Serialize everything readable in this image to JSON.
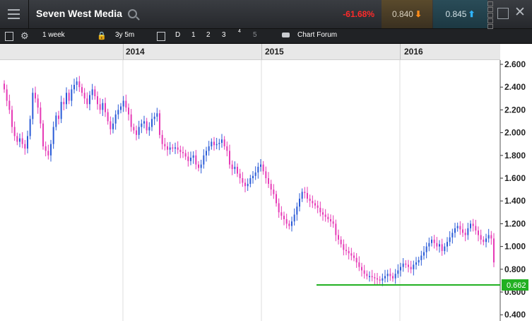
{
  "header": {
    "title": "Seven West Media",
    "change_pct": "-61.68%",
    "bid": "0.840",
    "ask": "0.845",
    "bid_arrow": "⬇",
    "ask_arrow": "⬆"
  },
  "toolbar": {
    "interval": "1 week",
    "range": "3y 5m",
    "views": [
      "D",
      "1",
      "2",
      "3",
      "4",
      "5"
    ],
    "chart_forum": "Chart Forum"
  },
  "colors": {
    "up_candle": "#2a5bd7",
    "down_candle": "#e63ab6",
    "support_line": "#22b022",
    "price_marker": "#22b022"
  },
  "icons": [
    "menu-icon",
    "search-icon",
    "save-icon",
    "gear-icon",
    "lock-icon",
    "calendar-icon",
    "chat-icon",
    "popout-icon",
    "close-icon"
  ],
  "chart_data": {
    "type": "candlestick",
    "x_years": [
      "2014",
      "2015",
      "2016"
    ],
    "y_ticks": [
      "2.600",
      "2.400",
      "2.200",
      "2.000",
      "1.800",
      "1.600",
      "1.400",
      "1.200",
      "1.000",
      "0.800",
      "0.600",
      "0.400"
    ],
    "ylim": [
      0.4,
      2.6
    ],
    "closes": [
      2.38,
      2.28,
      2.2,
      2.05,
      1.97,
      1.92,
      1.95,
      1.9,
      1.86,
      1.97,
      2.12,
      2.35,
      2.3,
      2.22,
      2.08,
      1.88,
      1.84,
      1.8,
      1.9,
      2.05,
      2.15,
      2.12,
      2.27,
      2.25,
      2.35,
      2.28,
      2.38,
      2.42,
      2.45,
      2.4,
      2.35,
      2.3,
      2.25,
      2.33,
      2.38,
      2.32,
      2.25,
      2.2,
      2.26,
      2.18,
      2.1,
      2.03,
      2.08,
      2.16,
      2.2,
      2.23,
      2.28,
      2.22,
      2.16,
      2.05,
      2.02,
      1.98,
      2.05,
      2.08,
      2.1,
      2.02,
      2.05,
      2.12,
      2.14,
      2.17,
      1.98,
      1.9,
      1.88,
      1.85,
      1.87,
      1.86,
      1.87,
      1.85,
      1.83,
      1.82,
      1.79,
      1.75,
      1.78,
      1.8,
      1.72,
      1.69,
      1.72,
      1.8,
      1.84,
      1.88,
      1.92,
      1.89,
      1.9,
      1.91,
      1.94,
      1.88,
      1.84,
      1.72,
      1.68,
      1.7,
      1.64,
      1.6,
      1.56,
      1.53,
      1.55,
      1.6,
      1.62,
      1.65,
      1.7,
      1.72,
      1.66,
      1.6,
      1.55,
      1.5,
      1.46,
      1.38,
      1.3,
      1.27,
      1.24,
      1.2,
      1.18,
      1.22,
      1.28,
      1.35,
      1.42,
      1.48,
      1.47,
      1.42,
      1.4,
      1.38,
      1.36,
      1.34,
      1.3,
      1.28,
      1.26,
      1.24,
      1.22,
      1.2,
      1.1,
      1.06,
      1.02,
      0.97,
      0.96,
      0.94,
      0.92,
      0.9,
      0.86,
      0.82,
      0.79,
      0.76,
      0.74,
      0.74,
      0.73,
      0.72,
      0.71,
      0.7,
      0.72,
      0.74,
      0.76,
      0.74,
      0.72,
      0.76,
      0.79,
      0.82,
      0.85,
      0.84,
      0.82,
      0.8,
      0.84,
      0.86,
      0.88,
      0.92,
      0.95,
      1.0,
      1.03,
      1.06,
      1.03,
      1.0,
      1.02,
      0.96,
      1.0,
      1.04,
      1.08,
      1.12,
      1.16,
      1.18,
      1.15,
      1.12,
      1.1,
      1.16,
      1.2,
      1.18,
      1.14,
      1.1,
      1.06,
      1.04,
      1.07,
      1.1,
      1.07,
      0.86
    ],
    "support_level": 0.662,
    "price_marker": "0.662"
  }
}
